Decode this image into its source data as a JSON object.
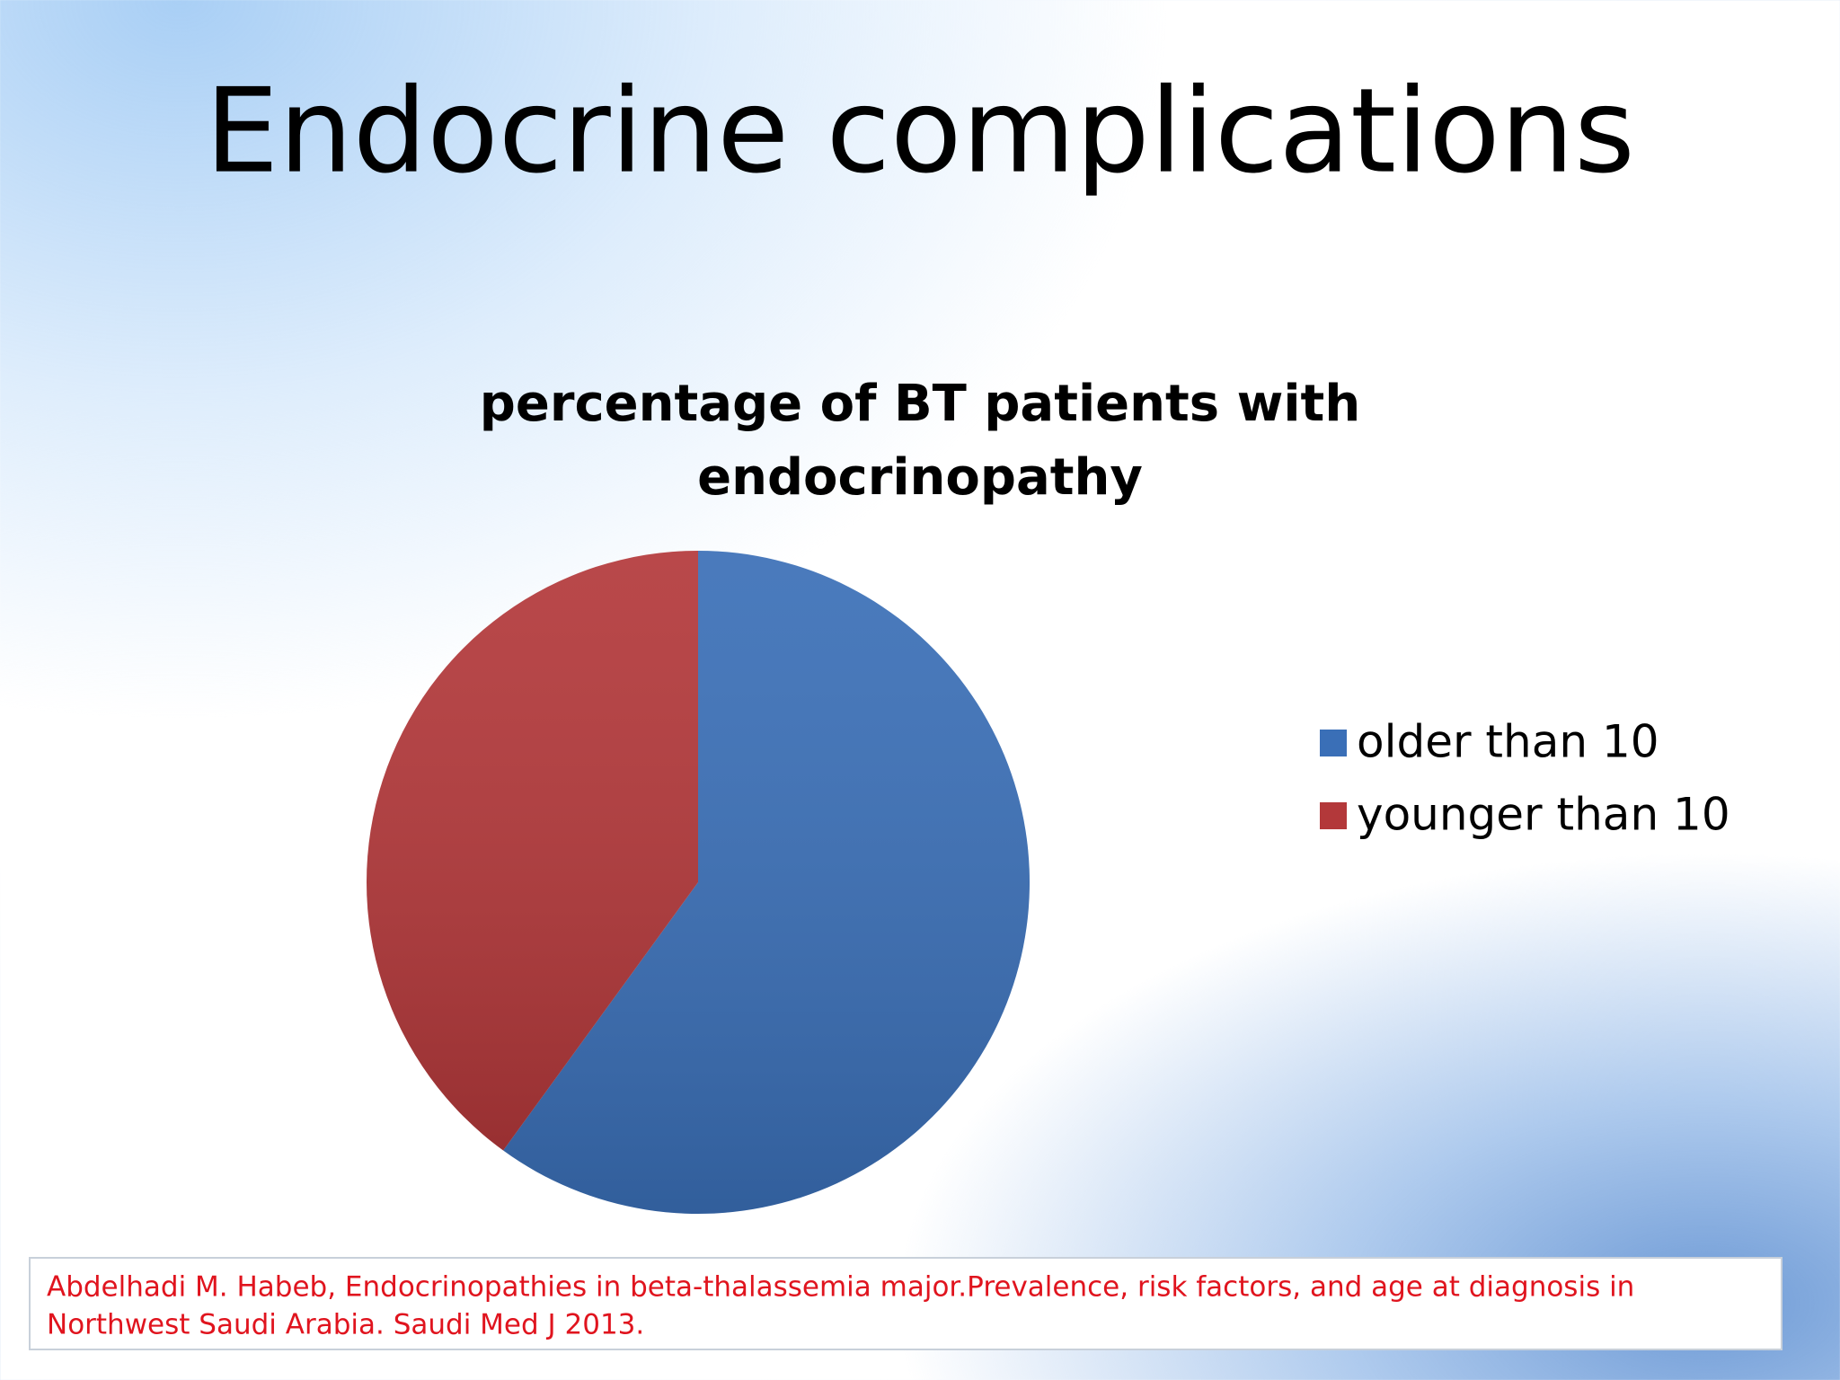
{
  "slide_title": "Endocrine complications",
  "chart_data": {
    "type": "pie",
    "title": [
      "percentage of BT patients with",
      "endocrinopathy"
    ],
    "categories": [
      "older than 10",
      "younger than 10"
    ],
    "values": [
      60,
      40
    ],
    "colors": [
      "#3a6fb7",
      "#b3383a"
    ],
    "legend": "right"
  },
  "citation": [
    "Abdelhadi M. Habeb, Endocrinopathies in beta-thalassemia major.Prevalence, risk factors, and age at diagnosis in",
    "Northwest Saudi Arabia. Saudi Med J 2013."
  ]
}
